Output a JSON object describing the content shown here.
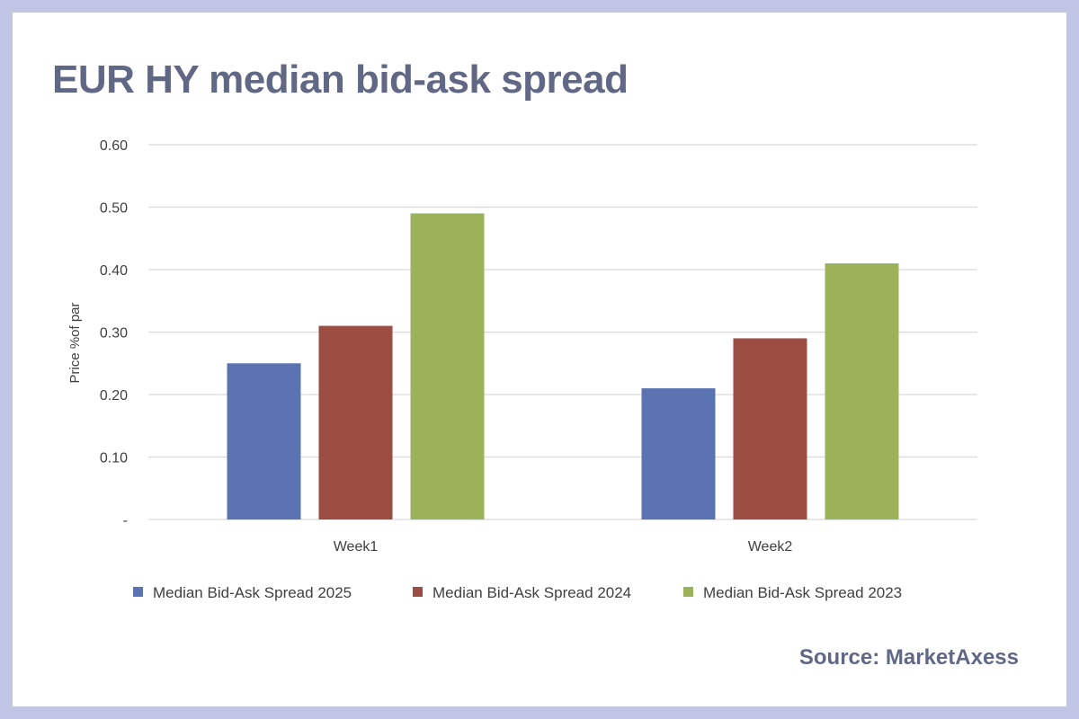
{
  "title": "EUR HY median bid-ask spread",
  "source": "Source: MarketAxess",
  "chart_data": {
    "type": "bar",
    "title": "EUR HY median bid-ask spread",
    "xlabel": "",
    "ylabel": "Price %of par",
    "categories": [
      "Week1",
      "Week2"
    ],
    "series": [
      {
        "name": "Median Bid-Ask Spread 2025",
        "color": "#5b73b0",
        "values": [
          0.25,
          0.21
        ]
      },
      {
        "name": "Median Bid-Ask Spread 2024",
        "color": "#9b4d41",
        "values": [
          0.31,
          0.29
        ]
      },
      {
        "name": "Median Bid-Ask Spread 2023",
        "color": "#9bb25b",
        "values": [
          0.49,
          0.41
        ]
      }
    ],
    "ylim": [
      0,
      0.6
    ],
    "yticks": [
      0,
      0.1,
      0.2,
      0.3,
      0.4,
      0.5,
      0.6
    ],
    "ytick_labels": [
      "-",
      "0.10",
      "0.20",
      "0.30",
      "0.40",
      "0.50",
      "0.60"
    ],
    "grid": true,
    "legend": "bottom"
  }
}
